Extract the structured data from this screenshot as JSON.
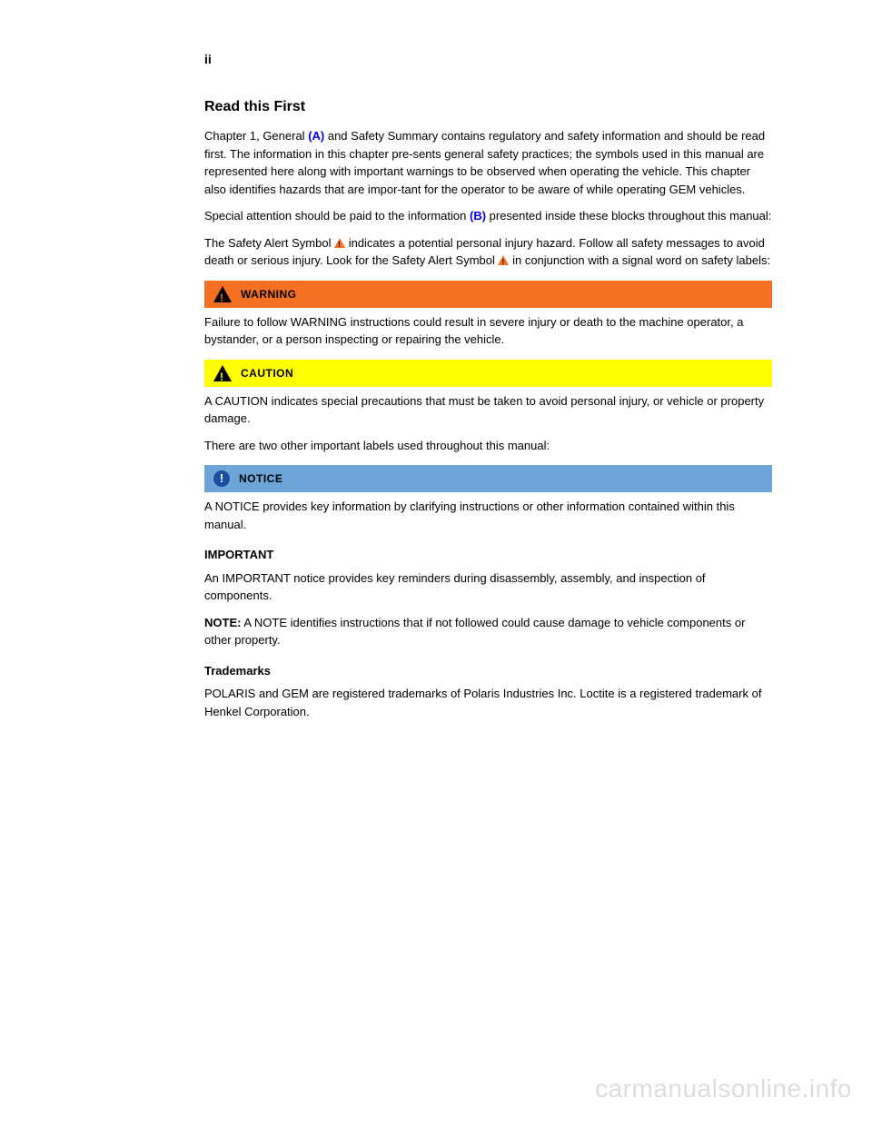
{
  "page": {
    "number": "ii"
  },
  "section": {
    "title": "Read this First",
    "para1_prefix": "Chapter 1, General ",
    "para1_link": "(A)",
    "para1_rest": " and Safety Summary contains regulatory and safety information and should be read first. The information in this chapter pre-sents general safety practices; the symbols used in this manual are represented here along with important warnings to be observed when operating the vehicle. This chapter also identifies hazards that are impor-tant for the operator to be aware of while operating GEM vehicles.",
    "para2": "Special attention should be paid to the information ",
    "para2_link": "(B)",
    "para2_rest": " presented inside these blocks throughout this manual:"
  },
  "warning": {
    "label": "WARNING",
    "intro_before": "The Safety Alert Symbol ",
    "intro_after": " indicates a potential personal injury hazard. Follow all safety messages to avoid death or serious injury. Look for the Safety Alert Symbol ",
    "intro_end": " in conjunction with a signal word on safety labels:",
    "body": "Failure to follow WARNING instructions could result in severe injury or death to the machine operator, a bystander, or a person inspecting or repairing the vehicle."
  },
  "caution": {
    "label": "CAUTION",
    "body1": "A CAUTION indicates special precautions that must be taken to avoid personal injury, or vehicle or property damage.",
    "preface": "There are two other important labels used throughout this manual:"
  },
  "notice": {
    "label": "NOTICE",
    "body": "A NOTICE provides key information by clarifying instructions or other information contained within this manual."
  },
  "important": {
    "title": "IMPORTANT",
    "body": "An IMPORTANT notice provides key reminders during disassembly, assembly, and inspection of components."
  },
  "note": {
    "title": "NOTE:",
    "body": " A NOTE identifies instructions that if not followed could cause damage to vehicle components or other property."
  },
  "trademarks": {
    "title": "Trademarks",
    "body": "POLARIS and GEM are registered trademarks of Polaris Industries Inc. Loctite is a registered trademark of Henkel Corporation."
  },
  "watermark": "carmanualsonline.info",
  "colors": {
    "warning_bg": "#f36f21",
    "caution_bg": "#ffff00",
    "notice_bg": "#6ea5d8",
    "link": "#0000ee",
    "watermark": "#dddddd"
  }
}
